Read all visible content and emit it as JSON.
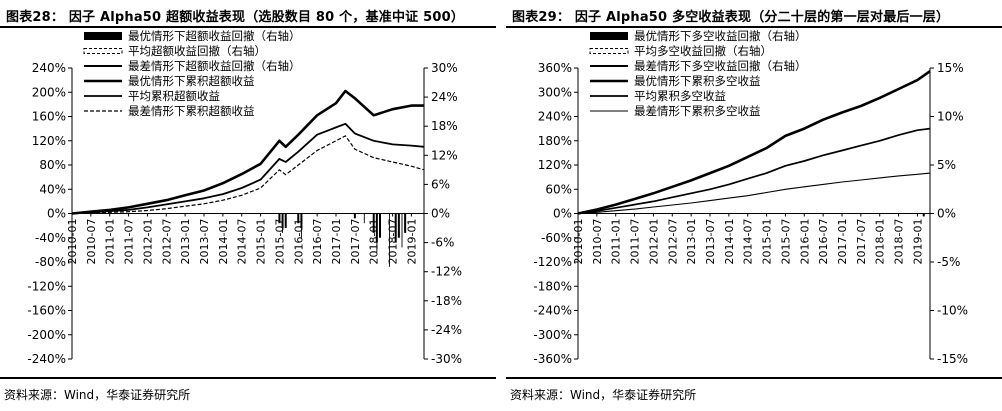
{
  "charts": [
    {
      "id": "left",
      "title": "图表28：  因子 Alpha50 超额收益表现（选股数目 80 个，基准中证 500）",
      "source": "资料来源：Wind，华泰证券研究所",
      "chart_data": {
        "type": "line",
        "x": [
          "2010-01",
          "2010-07",
          "2011-01",
          "2011-07",
          "2012-01",
          "2012-07",
          "2013-01",
          "2013-07",
          "2014-01",
          "2014-07",
          "2015-01",
          "2015-07",
          "2016-01",
          "2016-07",
          "2017-01",
          "2017-07",
          "2018-01",
          "2018-07",
          "2019-01"
        ],
        "x_end": "2019-05",
        "y_left_ticks": [
          "240%",
          "200%",
          "160%",
          "120%",
          "80%",
          "40%",
          "0%",
          "-40%",
          "-80%",
          "-120%",
          "-160%",
          "-200%",
          "-240%"
        ],
        "y_right_ticks": [
          "30%",
          "24%",
          "18%",
          "12%",
          "6%",
          "0%",
          "-6%",
          "-12%",
          "-18%",
          "-24%",
          "-30%"
        ],
        "ylim_left": [
          -2.4,
          2.4
        ],
        "ylim_right": [
          -0.3,
          0.3
        ],
        "grid": false,
        "legend_position": "top-left",
        "series": [
          {
            "name": "最优情形下超额收益回撤（右轴）",
            "kind": "bar",
            "axis": "right",
            "style": "solid",
            "x": [
              "2015-07",
              "2015-09",
              "2016-01",
              "2017-07",
              "2018-01",
              "2018-03",
              "2018-09",
              "2018-11"
            ],
            "values": [
              -0.02,
              -0.03,
              -0.02,
              -0.01,
              -0.04,
              -0.05,
              -0.05,
              -0.04
            ]
          },
          {
            "name": "平均超额收益回撤（右轴）",
            "kind": "bar",
            "axis": "right",
            "style": "dashed",
            "x": [
              "2015-08",
              "2016-02",
              "2018-02",
              "2018-08"
            ],
            "values": [
              -0.03,
              -0.03,
              -0.06,
              -0.06
            ]
          },
          {
            "name": "最差情形下超额收益回撤（右轴）",
            "kind": "bar",
            "axis": "right",
            "style": "thin",
            "x": [
              "2015-08",
              "2016-02",
              "2017-10",
              "2018-02",
              "2018-06",
              "2018-10"
            ],
            "values": [
              -0.04,
              -0.05,
              -0.02,
              -0.08,
              -0.11,
              -0.07
            ]
          },
          {
            "name": "最优情形下累积超额收益",
            "kind": "line",
            "axis": "left",
            "style": "solid",
            "stroke": 2.6,
            "x": [
              "2010-01",
              "2010-07",
              "2011-01",
              "2011-07",
              "2012-01",
              "2012-07",
              "2013-01",
              "2013-07",
              "2014-01",
              "2014-07",
              "2015-01",
              "2015-07",
              "2015-09",
              "2016-01",
              "2016-07",
              "2017-01",
              "2017-04",
              "2017-07",
              "2018-01",
              "2018-07",
              "2019-01",
              "2019-05"
            ],
            "values": [
              0,
              0.03,
              0.06,
              0.1,
              0.16,
              0.22,
              0.3,
              0.38,
              0.5,
              0.65,
              0.82,
              1.2,
              1.1,
              1.3,
              1.62,
              1.82,
              2.02,
              1.9,
              1.62,
              1.72,
              1.78,
              1.78
            ]
          },
          {
            "name": "平均累积超额收益",
            "kind": "line",
            "axis": "left",
            "style": "solid",
            "stroke": 1.8,
            "x": [
              "2010-01",
              "2010-07",
              "2011-01",
              "2011-07",
              "2012-01",
              "2012-07",
              "2013-01",
              "2013-07",
              "2014-01",
              "2014-07",
              "2015-01",
              "2015-07",
              "2015-09",
              "2016-01",
              "2016-07",
              "2017-01",
              "2017-04",
              "2017-07",
              "2018-01",
              "2018-07",
              "2019-01",
              "2019-05"
            ],
            "values": [
              0,
              0.02,
              0.04,
              0.06,
              0.1,
              0.15,
              0.2,
              0.25,
              0.32,
              0.42,
              0.56,
              0.9,
              0.85,
              1.02,
              1.3,
              1.42,
              1.48,
              1.32,
              1.2,
              1.14,
              1.12,
              1.1
            ]
          },
          {
            "name": "最差情形下累积超额收益",
            "kind": "line",
            "axis": "left",
            "style": "dashed",
            "stroke": 1.2,
            "x": [
              "2010-01",
              "2010-07",
              "2011-01",
              "2011-07",
              "2012-01",
              "2012-07",
              "2013-01",
              "2013-07",
              "2014-01",
              "2014-07",
              "2015-01",
              "2015-07",
              "2015-09",
              "2016-01",
              "2016-07",
              "2017-01",
              "2017-04",
              "2017-07",
              "2018-01",
              "2018-07",
              "2019-01",
              "2019-05"
            ],
            "values": [
              0,
              0.01,
              0.02,
              0.03,
              0.05,
              0.08,
              0.12,
              0.16,
              0.22,
              0.3,
              0.42,
              0.72,
              0.64,
              0.8,
              1.04,
              1.2,
              1.28,
              1.06,
              0.92,
              0.85,
              0.78,
              0.72
            ]
          }
        ]
      }
    },
    {
      "id": "right",
      "title": "图表29：  因子 Alpha50 多空收益表现（分二十层的第一层对最后一层）",
      "source": "资料来源：Wind，华泰证券研究所",
      "chart_data": {
        "type": "line",
        "x": [
          "2010-01",
          "2010-07",
          "2011-01",
          "2011-07",
          "2012-01",
          "2012-07",
          "2013-01",
          "2013-07",
          "2014-01",
          "2014-07",
          "2015-01",
          "2015-07",
          "2016-01",
          "2016-07",
          "2017-01",
          "2017-07",
          "2018-01",
          "2018-07",
          "2019-01"
        ],
        "x_end": "2019-05",
        "y_left_ticks": [
          "360%",
          "300%",
          "240%",
          "180%",
          "120%",
          "60%",
          "0%",
          "-60%",
          "-120%",
          "-180%",
          "-240%",
          "-300%",
          "-360%"
        ],
        "y_right_ticks": [
          "15%",
          "10%",
          "5%",
          "0%",
          "-5%",
          "-10%",
          "-15%"
        ],
        "ylim_left": [
          -3.6,
          3.6
        ],
        "ylim_right": [
          -0.15,
          0.15
        ],
        "grid": false,
        "legend_position": "top-left",
        "series": [
          {
            "name": "最优情形下多空收益回撤（右轴）",
            "kind": "bar",
            "axis": "right",
            "style": "solid",
            "x": [
              "2019-03"
            ],
            "values": [
              -0.003
            ]
          },
          {
            "name": "平均多空收益回撤（右轴）",
            "kind": "bar",
            "axis": "right",
            "style": "dashed",
            "x": [],
            "values": []
          },
          {
            "name": "最差情形下多空收益回撤（右轴）",
            "kind": "bar",
            "axis": "right",
            "style": "thin",
            "x": [],
            "values": []
          },
          {
            "name": "最优情形下累积多空收益",
            "kind": "line",
            "axis": "left",
            "style": "solid",
            "stroke": 2.6,
            "x": [
              "2010-01",
              "2010-07",
              "2011-01",
              "2011-07",
              "2012-01",
              "2012-07",
              "2013-01",
              "2013-07",
              "2014-01",
              "2014-07",
              "2015-01",
              "2015-07",
              "2016-01",
              "2016-07",
              "2017-01",
              "2017-07",
              "2018-01",
              "2018-07",
              "2019-01",
              "2019-05"
            ],
            "values": [
              0,
              0.1,
              0.22,
              0.36,
              0.5,
              0.66,
              0.82,
              1.0,
              1.18,
              1.4,
              1.62,
              1.92,
              2.1,
              2.32,
              2.5,
              2.66,
              2.86,
              3.08,
              3.3,
              3.52
            ]
          },
          {
            "name": "平均累积多空收益",
            "kind": "line",
            "axis": "left",
            "style": "solid",
            "stroke": 1.7,
            "x": [
              "2010-01",
              "2010-07",
              "2011-01",
              "2011-07",
              "2012-01",
              "2012-07",
              "2013-01",
              "2013-07",
              "2014-01",
              "2014-07",
              "2015-01",
              "2015-07",
              "2016-01",
              "2016-07",
              "2017-01",
              "2017-07",
              "2018-01",
              "2018-07",
              "2019-01",
              "2019-05"
            ],
            "values": [
              0,
              0.06,
              0.14,
              0.22,
              0.3,
              0.4,
              0.5,
              0.6,
              0.72,
              0.86,
              1.0,
              1.18,
              1.3,
              1.44,
              1.56,
              1.68,
              1.8,
              1.94,
              2.06,
              2.1
            ]
          },
          {
            "name": "最差情形下累积多空收益",
            "kind": "line",
            "axis": "left",
            "style": "solid",
            "stroke": 1.1,
            "x": [
              "2010-01",
              "2010-07",
              "2011-01",
              "2011-07",
              "2012-01",
              "2012-07",
              "2013-01",
              "2013-07",
              "2014-01",
              "2014-07",
              "2015-01",
              "2015-07",
              "2016-01",
              "2016-07",
              "2017-01",
              "2017-07",
              "2018-01",
              "2018-07",
              "2019-01",
              "2019-05"
            ],
            "values": [
              0,
              0.03,
              0.07,
              0.11,
              0.16,
              0.21,
              0.26,
              0.32,
              0.38,
              0.44,
              0.52,
              0.6,
              0.66,
              0.72,
              0.78,
              0.83,
              0.88,
              0.93,
              0.97,
              1.0
            ]
          }
        ]
      }
    }
  ]
}
